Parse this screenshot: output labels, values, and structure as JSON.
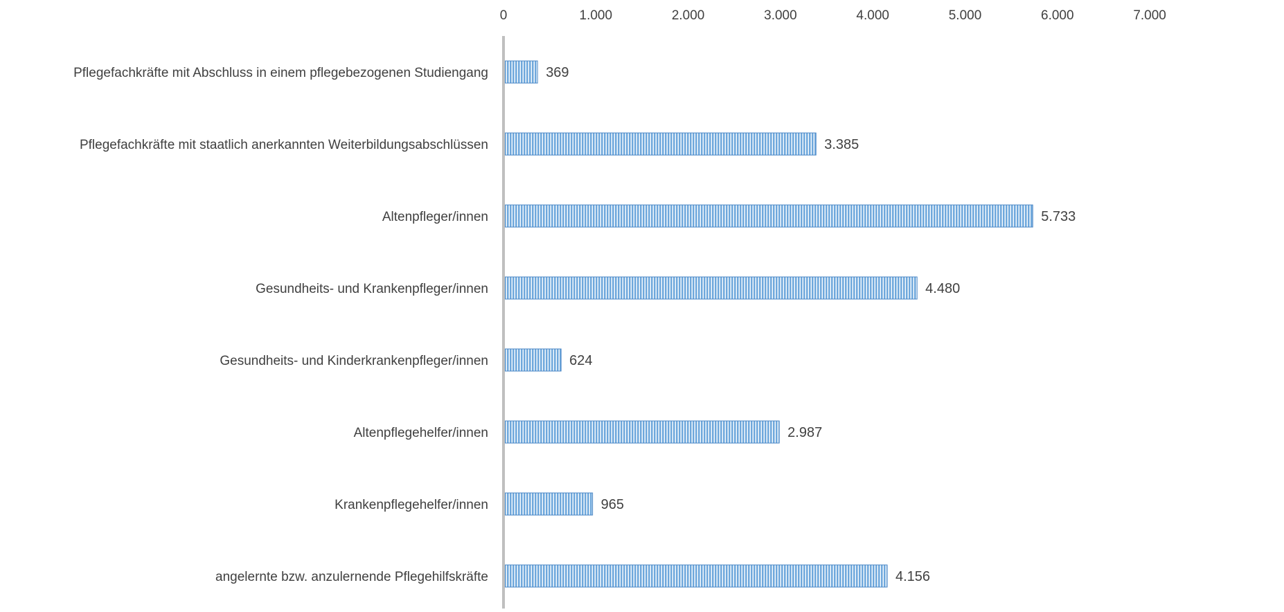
{
  "chart_data": {
    "type": "bar",
    "orientation": "horizontal",
    "title": "",
    "xlabel": "",
    "ylabel": "",
    "xlim": [
      0,
      7000
    ],
    "ticks": [
      0,
      1000,
      2000,
      3000,
      4000,
      5000,
      6000,
      7000
    ],
    "tick_labels": [
      "0",
      "1.000",
      "2.000",
      "3.000",
      "4.000",
      "5.000",
      "6.000",
      "7.000"
    ],
    "axis_position": "top",
    "grid": false,
    "legend": "none",
    "categories": [
      "Pflegefachkräfte mit Abschluss in einem pflegebezogenen Studiengang",
      "Pflegefachkräfte mit staatlich anerkannten Weiterbildungsabschlüssen",
      "Altenpfleger/innen",
      "Gesundheits- und Krankenpfleger/innen",
      "Gesundheits- und Kinderkrankenpfleger/innen",
      "Altenpflegehelfer/innen",
      "Krankenpflegehelfer/innen",
      "angelernte bzw. anzulernende Pflegehilfskräfte"
    ],
    "values": [
      369,
      3385,
      5733,
      4480,
      624,
      2987,
      965,
      4156
    ],
    "value_labels": [
      "369",
      "3.385",
      "5.733",
      "4.480",
      "624",
      "2.987",
      "965",
      "4.156"
    ],
    "colors": {
      "bar_fill": "#6fa8dc",
      "bar_stripe": "#ffffff",
      "bar_edge": "#4a86c5",
      "axis_line": "#bfbfbf",
      "text": "#404040"
    }
  }
}
